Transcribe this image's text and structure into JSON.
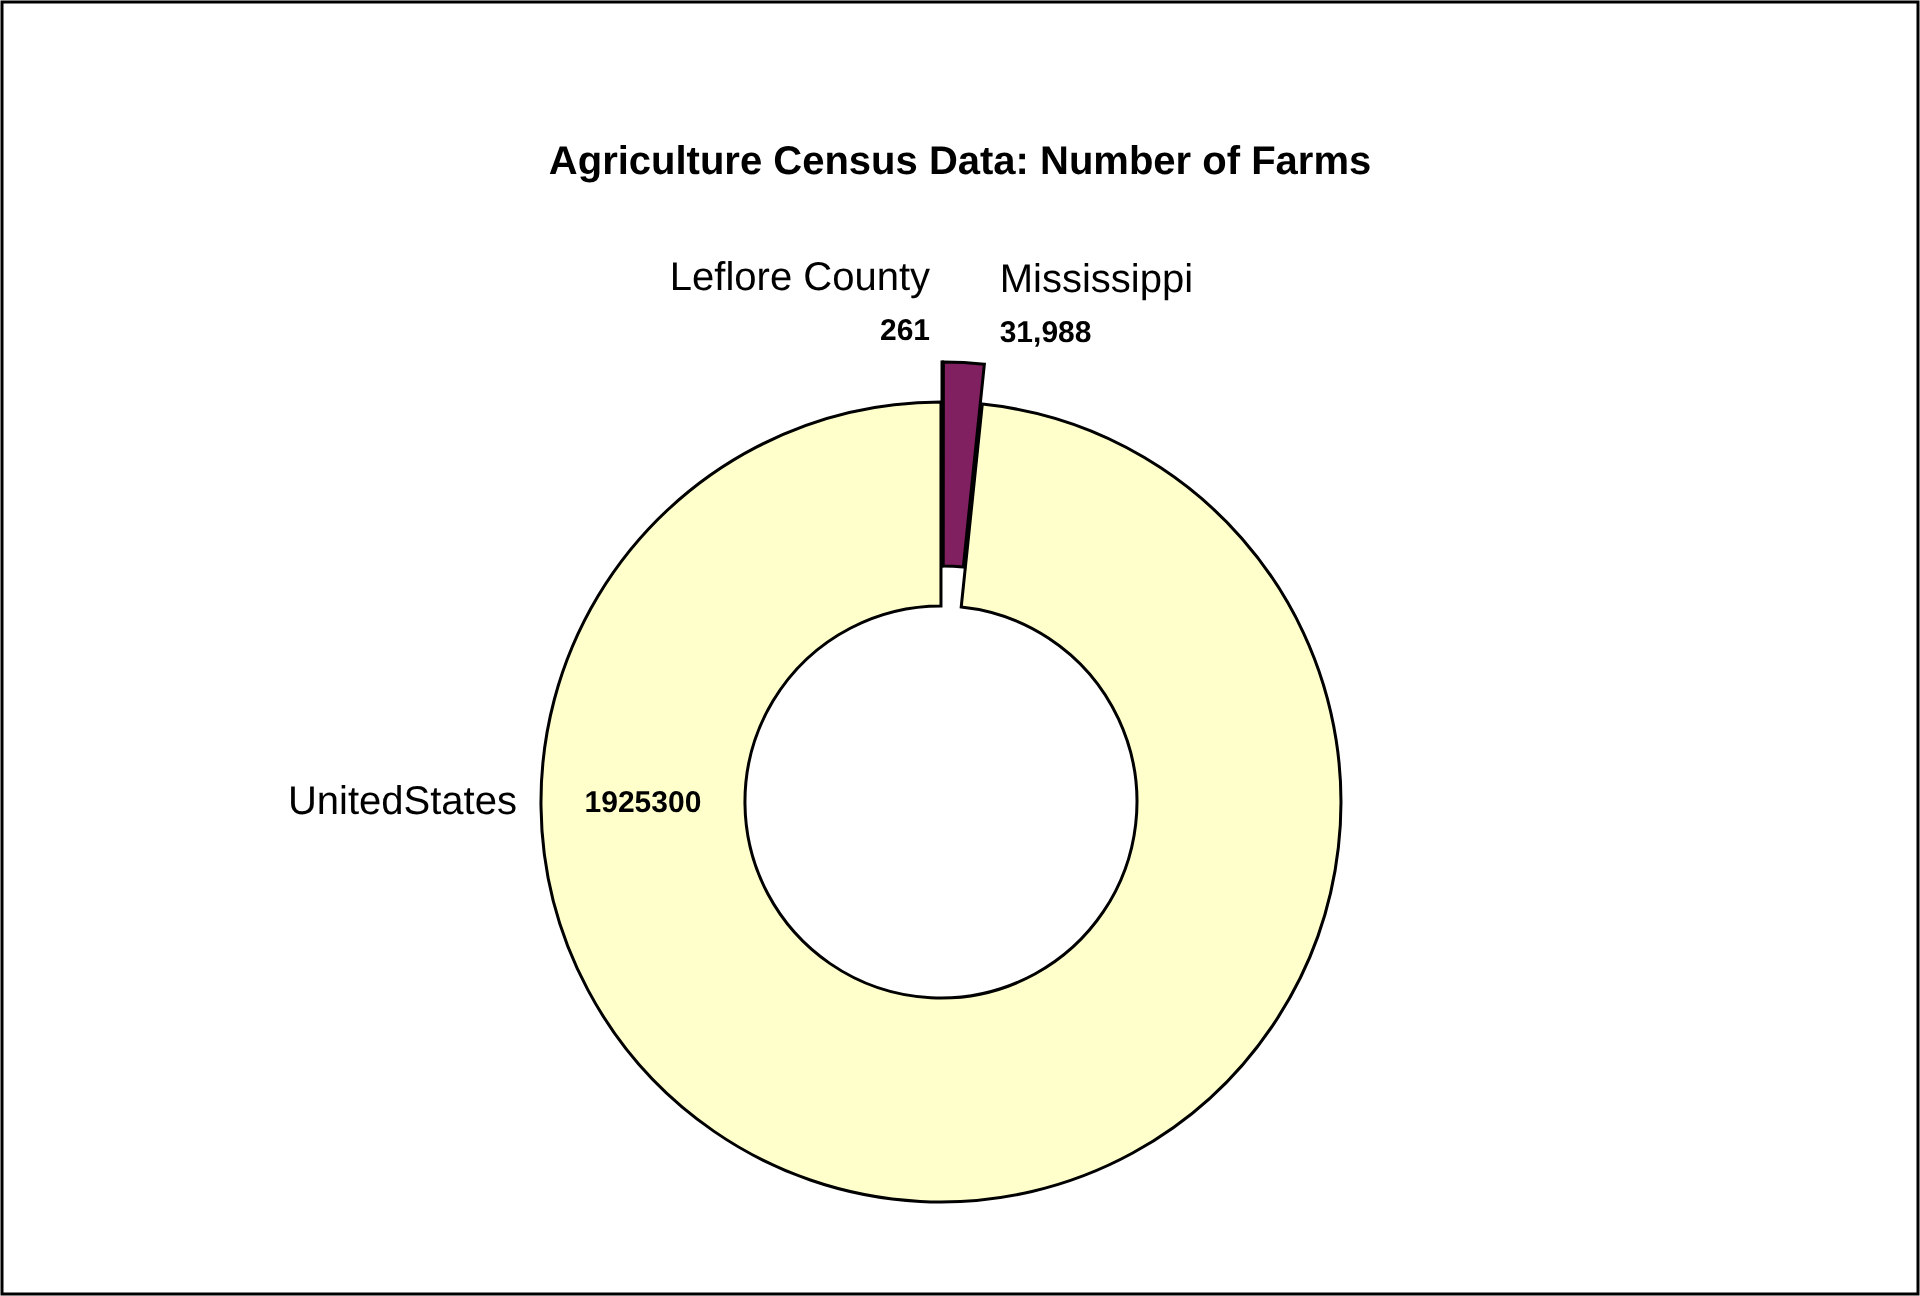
{
  "chart_data": {
    "type": "donut",
    "title": "Agriculture Census Data: Number of Farms",
    "categories": [
      "Leflore County",
      "Mississippi",
      "UnitedStates"
    ],
    "values": [
      261,
      31988,
      1925300
    ],
    "value_labels": [
      "261",
      "31,988",
      "1925300"
    ],
    "colors": [
      "#8080ff",
      "#802060",
      "#ffffcc"
    ]
  }
}
